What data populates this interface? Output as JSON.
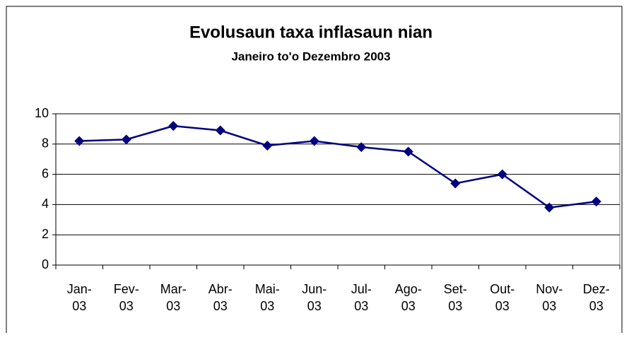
{
  "chart_data": {
    "type": "line",
    "title": "Evolusaun taxa inflasaun nian",
    "subtitle": "Janeiro to'o Dezembro 2003",
    "categories": [
      "Jan-03",
      "Fev-03",
      "Mar-03",
      "Abr-03",
      "Mai-03",
      "Jun-03",
      "Jul-03",
      "Ago-03",
      "Set-03",
      "Out-03",
      "Nov-03",
      "Dez-03"
    ],
    "series": [
      {
        "color": "#000080",
        "values": [
          8.2,
          8.3,
          9.2,
          8.9,
          7.9,
          8.2,
          7.8,
          7.5,
          5.4,
          6.0,
          3.8,
          4.2
        ]
      }
    ],
    "ylim": [
      0,
      10
    ],
    "yticks": [
      0,
      2,
      4,
      6,
      8,
      10
    ],
    "grid": true
  }
}
